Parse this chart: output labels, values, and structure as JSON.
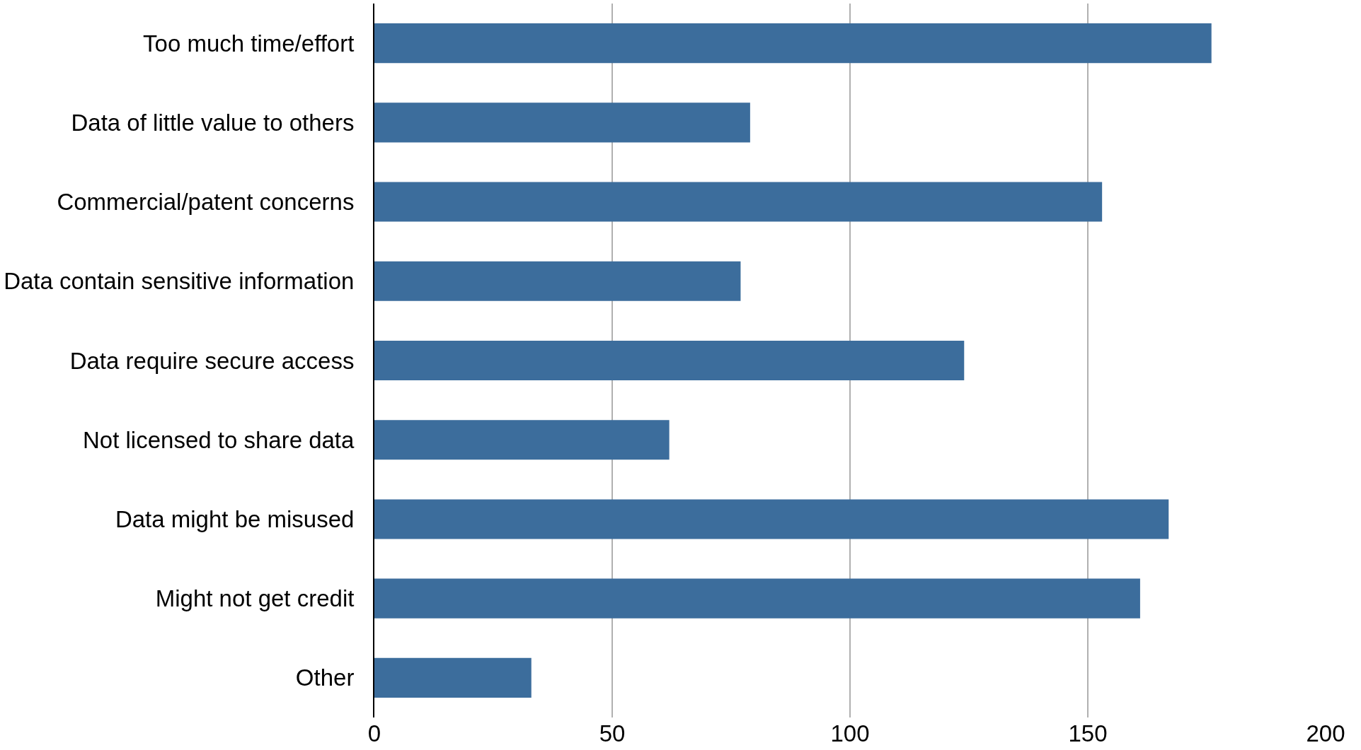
{
  "chart_data": {
    "type": "bar",
    "orientation": "horizontal",
    "categories": [
      "Too much time/effort",
      "Data of little value to others",
      "Commercial/patent concerns",
      "Data contain sensitive information",
      "Data require secure access",
      "Not licensed to share data",
      "Data might be misused",
      "Might not get credit",
      "Other"
    ],
    "values": [
      176,
      79,
      153,
      77,
      124,
      62,
      167,
      161,
      33
    ],
    "color": "#3c6d9c",
    "xlim": [
      0,
      200
    ],
    "xticks": [
      0,
      50,
      100,
      150,
      200
    ],
    "grid": "x"
  }
}
